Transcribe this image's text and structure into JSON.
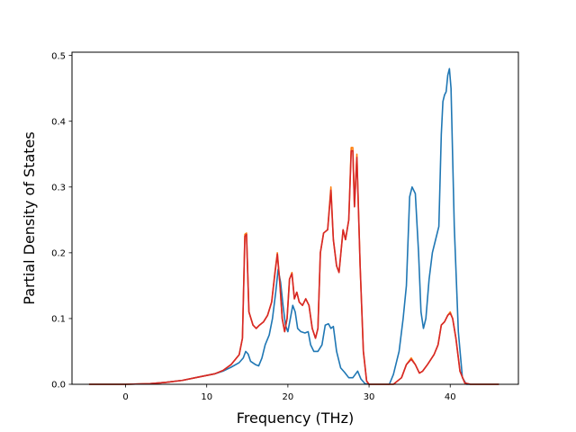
{
  "chart_data": {
    "type": "line",
    "title": "",
    "xlabel": "Frequency (THz)",
    "ylabel": "Partial Density of States",
    "xlim": [
      -6.6,
      48.4
    ],
    "ylim": [
      0,
      0.505
    ],
    "xticks": [
      0,
      10,
      20,
      30,
      40
    ],
    "yticks": [
      0.0,
      0.1,
      0.2,
      0.3,
      0.4,
      0.5
    ],
    "xtick_labels": [
      "0",
      "10",
      "20",
      "30",
      "40"
    ],
    "ytick_labels": [
      "0.0",
      "0.1",
      "0.2",
      "0.3",
      "0.4",
      "0.5"
    ],
    "grid": false,
    "legend": "none",
    "series": [
      {
        "color": "#1f77b4",
        "points": [
          [
            -4.5,
            0
          ],
          [
            0,
            0
          ],
          [
            3,
            0.001
          ],
          [
            5,
            0.003
          ],
          [
            7,
            0.006
          ],
          [
            9,
            0.011
          ],
          [
            11,
            0.016
          ],
          [
            12,
            0.02
          ],
          [
            13,
            0.026
          ],
          [
            14,
            0.033
          ],
          [
            14.5,
            0.04
          ],
          [
            14.8,
            0.05
          ],
          [
            15.1,
            0.046
          ],
          [
            15.4,
            0.035
          ],
          [
            16,
            0.03
          ],
          [
            16.4,
            0.028
          ],
          [
            16.8,
            0.04
          ],
          [
            17.2,
            0.06
          ],
          [
            17.7,
            0.075
          ],
          [
            18.1,
            0.1
          ],
          [
            18.5,
            0.14
          ],
          [
            18.8,
            0.175
          ],
          [
            19.1,
            0.155
          ],
          [
            19.4,
            0.12
          ],
          [
            19.7,
            0.09
          ],
          [
            20,
            0.08
          ],
          [
            20.3,
            0.1
          ],
          [
            20.6,
            0.12
          ],
          [
            20.9,
            0.11
          ],
          [
            21.2,
            0.085
          ],
          [
            21.6,
            0.08
          ],
          [
            22.1,
            0.078
          ],
          [
            22.5,
            0.08
          ],
          [
            22.8,
            0.06
          ],
          [
            23.2,
            0.05
          ],
          [
            23.7,
            0.05
          ],
          [
            24.2,
            0.06
          ],
          [
            24.6,
            0.09
          ],
          [
            25,
            0.092
          ],
          [
            25.3,
            0.085
          ],
          [
            25.6,
            0.088
          ],
          [
            26,
            0.05
          ],
          [
            26.5,
            0.025
          ],
          [
            27,
            0.018
          ],
          [
            27.5,
            0.01
          ],
          [
            28,
            0.01
          ],
          [
            28.3,
            0.015
          ],
          [
            28.6,
            0.02
          ],
          [
            29,
            0.008
          ],
          [
            29.5,
            0.001
          ],
          [
            30,
            0
          ],
          [
            32.5,
            0
          ],
          [
            33,
            0.015
          ],
          [
            33.7,
            0.05
          ],
          [
            34.2,
            0.1
          ],
          [
            34.6,
            0.15
          ],
          [
            35,
            0.285
          ],
          [
            35.3,
            0.3
          ],
          [
            35.7,
            0.29
          ],
          [
            36.1,
            0.2
          ],
          [
            36.4,
            0.11
          ],
          [
            36.7,
            0.085
          ],
          [
            37,
            0.1
          ],
          [
            37.4,
            0.16
          ],
          [
            37.8,
            0.2
          ],
          [
            38.2,
            0.22
          ],
          [
            38.6,
            0.24
          ],
          [
            38.9,
            0.38
          ],
          [
            39.1,
            0.43
          ],
          [
            39.3,
            0.44
          ],
          [
            39.5,
            0.445
          ],
          [
            39.7,
            0.47
          ],
          [
            39.9,
            0.48
          ],
          [
            40.1,
            0.45
          ],
          [
            40.5,
            0.24
          ],
          [
            41,
            0.08
          ],
          [
            41.5,
            0.01
          ],
          [
            42,
            0
          ],
          [
            46,
            0
          ]
        ]
      },
      {
        "color": "#ff7f0e",
        "points": [
          [
            -4.5,
            0
          ],
          [
            0,
            0
          ],
          [
            3,
            0.001
          ],
          [
            5,
            0.003
          ],
          [
            7,
            0.006
          ],
          [
            9,
            0.011
          ],
          [
            11,
            0.016
          ],
          [
            12,
            0.021
          ],
          [
            13,
            0.03
          ],
          [
            14,
            0.045
          ],
          [
            14.4,
            0.07
          ],
          [
            14.7,
            0.228
          ],
          [
            14.9,
            0.23
          ],
          [
            15.2,
            0.11
          ],
          [
            15.7,
            0.09
          ],
          [
            16.1,
            0.085
          ],
          [
            16.5,
            0.09
          ],
          [
            17,
            0.095
          ],
          [
            17.5,
            0.105
          ],
          [
            18,
            0.125
          ],
          [
            18.4,
            0.17
          ],
          [
            18.7,
            0.2
          ],
          [
            19,
            0.155
          ],
          [
            19.3,
            0.1
          ],
          [
            19.6,
            0.08
          ],
          [
            19.9,
            0.1
          ],
          [
            20.2,
            0.16
          ],
          [
            20.5,
            0.17
          ],
          [
            20.8,
            0.13
          ],
          [
            21.1,
            0.14
          ],
          [
            21.4,
            0.125
          ],
          [
            21.8,
            0.12
          ],
          [
            22.2,
            0.13
          ],
          [
            22.6,
            0.12
          ],
          [
            23,
            0.085
          ],
          [
            23.4,
            0.07
          ],
          [
            23.7,
            0.085
          ],
          [
            24,
            0.2
          ],
          [
            24.4,
            0.23
          ],
          [
            24.9,
            0.235
          ],
          [
            25.3,
            0.3
          ],
          [
            25.6,
            0.22
          ],
          [
            26,
            0.18
          ],
          [
            26.3,
            0.17
          ],
          [
            26.8,
            0.235
          ],
          [
            27.1,
            0.22
          ],
          [
            27.5,
            0.25
          ],
          [
            27.8,
            0.36
          ],
          [
            28,
            0.36
          ],
          [
            28.2,
            0.27
          ],
          [
            28.5,
            0.35
          ],
          [
            28.9,
            0.18
          ],
          [
            29.3,
            0.05
          ],
          [
            29.7,
            0.005
          ],
          [
            30,
            0
          ],
          [
            33,
            0
          ],
          [
            34,
            0.01
          ],
          [
            34.6,
            0.03
          ],
          [
            35.2,
            0.04
          ],
          [
            35.7,
            0.03
          ],
          [
            36.2,
            0.017
          ],
          [
            36.6,
            0.02
          ],
          [
            37.2,
            0.03
          ],
          [
            38,
            0.045
          ],
          [
            38.5,
            0.06
          ],
          [
            38.9,
            0.09
          ],
          [
            39.3,
            0.095
          ],
          [
            39.7,
            0.105
          ],
          [
            40,
            0.11
          ],
          [
            40.3,
            0.1
          ],
          [
            40.7,
            0.07
          ],
          [
            41.2,
            0.02
          ],
          [
            41.8,
            0.002
          ],
          [
            42.5,
            0
          ],
          [
            46,
            0
          ]
        ]
      },
      {
        "color": "#d62728",
        "points": [
          [
            -4.5,
            0
          ],
          [
            0,
            0
          ],
          [
            3,
            0.001
          ],
          [
            5,
            0.003
          ],
          [
            7,
            0.006
          ],
          [
            9,
            0.011
          ],
          [
            11,
            0.016
          ],
          [
            12,
            0.021
          ],
          [
            13,
            0.03
          ],
          [
            14,
            0.045
          ],
          [
            14.4,
            0.07
          ],
          [
            14.7,
            0.225
          ],
          [
            14.9,
            0.228
          ],
          [
            15.2,
            0.11
          ],
          [
            15.7,
            0.09
          ],
          [
            16.1,
            0.085
          ],
          [
            16.5,
            0.09
          ],
          [
            17,
            0.095
          ],
          [
            17.5,
            0.105
          ],
          [
            18,
            0.125
          ],
          [
            18.4,
            0.168
          ],
          [
            18.7,
            0.198
          ],
          [
            19,
            0.155
          ],
          [
            19.3,
            0.1
          ],
          [
            19.6,
            0.08
          ],
          [
            19.9,
            0.1
          ],
          [
            20.2,
            0.16
          ],
          [
            20.5,
            0.168
          ],
          [
            20.8,
            0.13
          ],
          [
            21.1,
            0.14
          ],
          [
            21.4,
            0.125
          ],
          [
            21.8,
            0.12
          ],
          [
            22.2,
            0.13
          ],
          [
            22.6,
            0.12
          ],
          [
            23,
            0.085
          ],
          [
            23.4,
            0.07
          ],
          [
            23.7,
            0.085
          ],
          [
            24,
            0.2
          ],
          [
            24.4,
            0.23
          ],
          [
            24.9,
            0.235
          ],
          [
            25.3,
            0.295
          ],
          [
            25.6,
            0.22
          ],
          [
            26,
            0.18
          ],
          [
            26.3,
            0.17
          ],
          [
            26.8,
            0.235
          ],
          [
            27.1,
            0.22
          ],
          [
            27.5,
            0.25
          ],
          [
            27.8,
            0.355
          ],
          [
            28,
            0.355
          ],
          [
            28.2,
            0.27
          ],
          [
            28.5,
            0.345
          ],
          [
            28.9,
            0.18
          ],
          [
            29.3,
            0.05
          ],
          [
            29.7,
            0.005
          ],
          [
            30,
            0
          ],
          [
            33,
            0
          ],
          [
            34,
            0.01
          ],
          [
            34.6,
            0.03
          ],
          [
            35.2,
            0.038
          ],
          [
            35.7,
            0.03
          ],
          [
            36.2,
            0.017
          ],
          [
            36.6,
            0.02
          ],
          [
            37.2,
            0.03
          ],
          [
            38,
            0.045
          ],
          [
            38.5,
            0.06
          ],
          [
            38.9,
            0.09
          ],
          [
            39.3,
            0.095
          ],
          [
            39.7,
            0.105
          ],
          [
            40,
            0.108
          ],
          [
            40.3,
            0.1
          ],
          [
            40.7,
            0.07
          ],
          [
            41.2,
            0.02
          ],
          [
            41.8,
            0.002
          ],
          [
            42.5,
            0
          ],
          [
            46,
            0
          ]
        ]
      }
    ]
  }
}
